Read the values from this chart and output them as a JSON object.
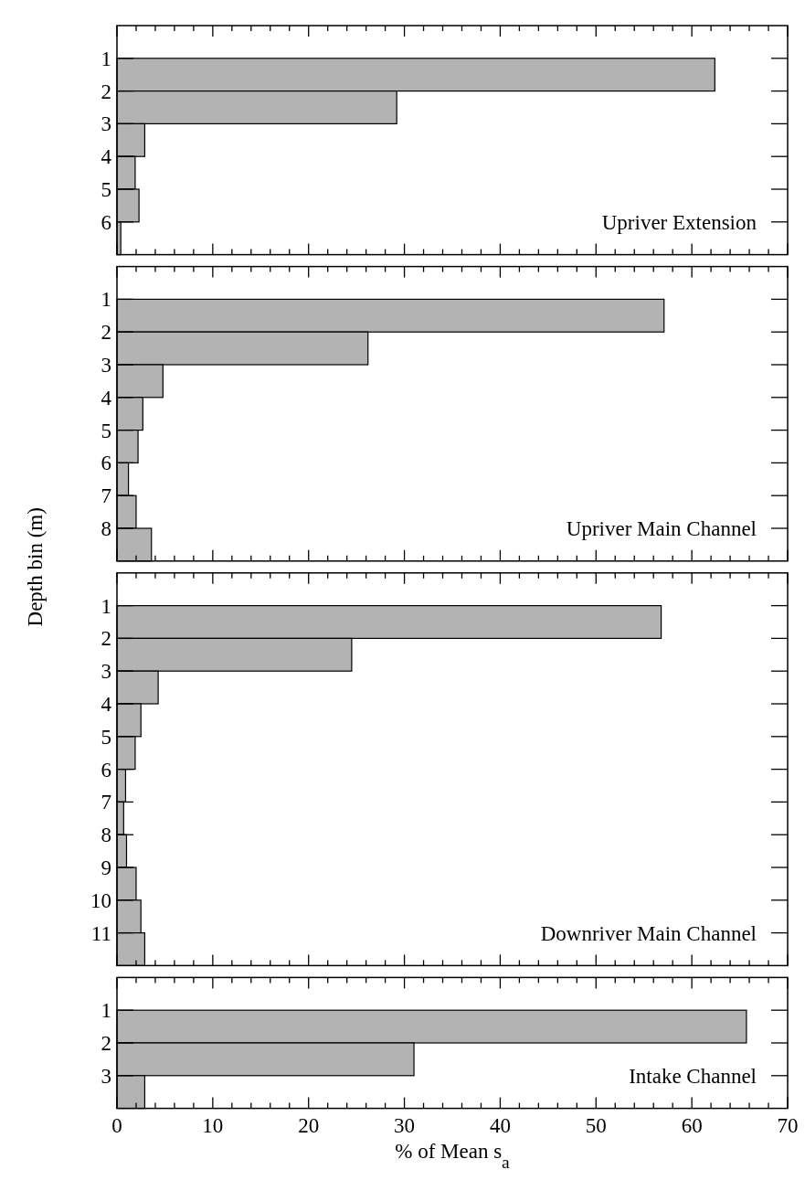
{
  "chart_data": [
    {
      "type": "histogram",
      "orientation": "horizontal",
      "title": "Upriver Extension",
      "bins": [
        1,
        2,
        3,
        4,
        5,
        6,
        7
      ],
      "values": [
        62.4,
        29.2,
        2.9,
        1.9,
        2.3,
        0.4
      ],
      "color": "#b3b3b3",
      "xlim": [
        0,
        70
      ],
      "xticks": [
        0,
        {
          "value": 2,
          "label": null
        },
        {
          "value": 4,
          "label": null
        },
        {
          "value": 6,
          "label": null
        },
        {
          "value": 8,
          "label": null
        },
        10,
        {
          "value": 12,
          "label": null
        },
        {
          "value": 14,
          "label": null
        },
        {
          "value": 16,
          "label": null
        },
        {
          "value": 18,
          "label": null
        },
        20,
        {
          "value": 22,
          "label": null
        },
        {
          "value": 24,
          "label": null
        },
        {
          "value": 26,
          "label": null
        },
        {
          "value": 28,
          "label": null
        },
        30,
        {
          "value": 32,
          "label": null
        },
        {
          "value": 34,
          "label": null
        },
        {
          "value": 36,
          "label": null
        },
        {
          "value": 38,
          "label": null
        },
        40,
        {
          "value": 42,
          "label": null
        },
        {
          "value": 44,
          "label": null
        },
        {
          "value": 46,
          "label": null
        },
        {
          "value": 48,
          "label": null
        },
        50,
        {
          "value": 52,
          "label": null
        },
        {
          "value": 54,
          "label": null
        },
        {
          "value": 56,
          "label": null
        },
        {
          "value": 58,
          "label": null
        },
        60,
        {
          "value": 62,
          "label": null
        },
        {
          "value": 64,
          "label": null
        },
        {
          "value": 66,
          "label": null
        },
        {
          "value": 68,
          "label": null
        },
        70
      ],
      "ylim": [
        7,
        0
      ],
      "yticks": [
        1,
        2,
        3,
        4,
        5,
        6
      ],
      "tick_labels": "y",
      "grid": false
    },
    {
      "type": "histogram",
      "orientation": "horizontal",
      "title": "Upriver Main Channel",
      "ylabel": "Depth bin (m)",
      "bins": [
        1,
        2,
        3,
        4,
        5,
        6,
        7,
        8,
        9
      ],
      "values": [
        57.1,
        26.2,
        4.8,
        2.7,
        2.2,
        1.2,
        2.0,
        3.6
      ],
      "color": "#b3b3b3",
      "xlim": [
        0,
        70
      ],
      "xticks": [
        0,
        {
          "value": 2,
          "label": null
        },
        {
          "value": 4,
          "label": null
        },
        {
          "value": 6,
          "label": null
        },
        {
          "value": 8,
          "label": null
        },
        10,
        {
          "value": 12,
          "label": null
        },
        {
          "value": 14,
          "label": null
        },
        {
          "value": 16,
          "label": null
        },
        {
          "value": 18,
          "label": null
        },
        20,
        {
          "value": 22,
          "label": null
        },
        {
          "value": 24,
          "label": null
        },
        {
          "value": 26,
          "label": null
        },
        {
          "value": 28,
          "label": null
        },
        30,
        {
          "value": 32,
          "label": null
        },
        {
          "value": 34,
          "label": null
        },
        {
          "value": 36,
          "label": null
        },
        {
          "value": 38,
          "label": null
        },
        40,
        {
          "value": 42,
          "label": null
        },
        {
          "value": 44,
          "label": null
        },
        {
          "value": 46,
          "label": null
        },
        {
          "value": 48,
          "label": null
        },
        50,
        {
          "value": 52,
          "label": null
        },
        {
          "value": 54,
          "label": null
        },
        {
          "value": 56,
          "label": null
        },
        {
          "value": 58,
          "label": null
        },
        60,
        {
          "value": 62,
          "label": null
        },
        {
          "value": 64,
          "label": null
        },
        {
          "value": 66,
          "label": null
        },
        {
          "value": 68,
          "label": null
        },
        70
      ],
      "ylim": [
        9,
        0
      ],
      "yticks": [
        1,
        2,
        3,
        4,
        5,
        6,
        7,
        8
      ],
      "tick_labels": "y",
      "grid": false
    },
    {
      "type": "histogram",
      "orientation": "horizontal",
      "title": "Downriver Main Channel",
      "bins": [
        1,
        2,
        3,
        4,
        5,
        6,
        7,
        8,
        9,
        10,
        11,
        12
      ],
      "values": [
        56.8,
        24.5,
        4.3,
        2.5,
        1.9,
        0.9,
        0.7,
        1.0,
        2.0,
        2.5,
        2.9
      ],
      "color": "#b3b3b3",
      "xlim": [
        0,
        70
      ],
      "xticks": [
        0,
        {
          "value": 2,
          "label": null
        },
        {
          "value": 4,
          "label": null
        },
        {
          "value": 6,
          "label": null
        },
        {
          "value": 8,
          "label": null
        },
        10,
        {
          "value": 12,
          "label": null
        },
        {
          "value": 14,
          "label": null
        },
        {
          "value": 16,
          "label": null
        },
        {
          "value": 18,
          "label": null
        },
        20,
        {
          "value": 22,
          "label": null
        },
        {
          "value": 24,
          "label": null
        },
        {
          "value": 26,
          "label": null
        },
        {
          "value": 28,
          "label": null
        },
        30,
        {
          "value": 32,
          "label": null
        },
        {
          "value": 34,
          "label": null
        },
        {
          "value": 36,
          "label": null
        },
        {
          "value": 38,
          "label": null
        },
        40,
        {
          "value": 42,
          "label": null
        },
        {
          "value": 44,
          "label": null
        },
        {
          "value": 46,
          "label": null
        },
        {
          "value": 48,
          "label": null
        },
        50,
        {
          "value": 52,
          "label": null
        },
        {
          "value": 54,
          "label": null
        },
        {
          "value": 56,
          "label": null
        },
        {
          "value": 58,
          "label": null
        },
        60,
        {
          "value": 62,
          "label": null
        },
        {
          "value": 64,
          "label": null
        },
        {
          "value": 66,
          "label": null
        },
        {
          "value": 68,
          "label": null
        },
        70
      ],
      "ylim": [
        12,
        0
      ],
      "yticks": [
        1,
        2,
        3,
        4,
        5,
        6,
        7,
        8,
        9,
        10,
        11
      ],
      "tick_labels": "y",
      "grid": false
    },
    {
      "type": "histogram",
      "orientation": "horizontal",
      "title": "Intake Channel",
      "xlabel": "% of Mean s$_{a}$",
      "bins": [
        1,
        2,
        3,
        4
      ],
      "values": [
        65.7,
        31.0,
        2.9
      ],
      "color": "#b3b3b3",
      "xlim": [
        0,
        70
      ],
      "xticks": [
        0,
        {
          "value": 2,
          "label": null
        },
        {
          "value": 4,
          "label": null
        },
        {
          "value": 6,
          "label": null
        },
        {
          "value": 8,
          "label": null
        },
        10,
        {
          "value": 12,
          "label": null
        },
        {
          "value": 14,
          "label": null
        },
        {
          "value": 16,
          "label": null
        },
        {
          "value": 18,
          "label": null
        },
        20,
        {
          "value": 22,
          "label": null
        },
        {
          "value": 24,
          "label": null
        },
        {
          "value": 26,
          "label": null
        },
        {
          "value": 28,
          "label": null
        },
        30,
        {
          "value": 32,
          "label": null
        },
        {
          "value": 34,
          "label": null
        },
        {
          "value": 36,
          "label": null
        },
        {
          "value": 38,
          "label": null
        },
        40,
        {
          "value": 42,
          "label": null
        },
        {
          "value": 44,
          "label": null
        },
        {
          "value": 46,
          "label": null
        },
        {
          "value": 48,
          "label": null
        },
        50,
        {
          "value": 52,
          "label": null
        },
        {
          "value": 54,
          "label": null
        },
        {
          "value": 56,
          "label": null
        },
        {
          "value": 58,
          "label": null
        },
        60,
        {
          "value": 62,
          "label": null
        },
        {
          "value": 64,
          "label": null
        },
        {
          "value": 66,
          "label": null
        },
        {
          "value": 68,
          "label": null
        },
        70
      ],
      "ylim": [
        4,
        0
      ],
      "yticks": [
        1,
        2,
        3
      ],
      "grid": false
    }
  ]
}
